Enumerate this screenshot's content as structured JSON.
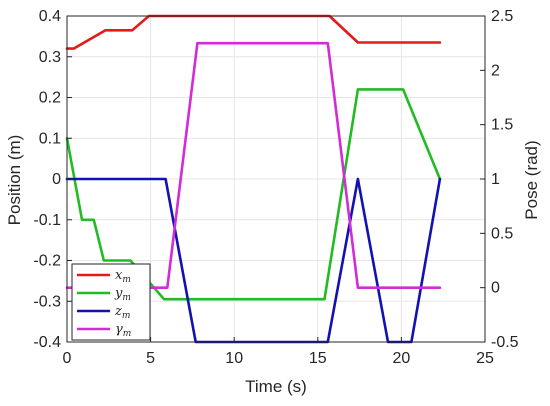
{
  "chart_data": {
    "type": "line",
    "xlabel": "Time (s)",
    "ylabel": "Position (m)",
    "y2label": "Pose (rad)",
    "xlim": [
      0,
      25
    ],
    "ylim": [
      -0.4,
      0.4
    ],
    "y2lim": [
      -0.5,
      2.5
    ],
    "grid": true,
    "legend_position": "bottom-left",
    "x_ticks": [
      "0",
      "5",
      "10",
      "15",
      "20",
      "25"
    ],
    "y_ticks": [
      "-0.4",
      "-0.3",
      "-0.2",
      "-0.1",
      "0",
      "0.1",
      "0.2",
      "0.3",
      "0.4"
    ],
    "y2_ticks": [
      "-0.5",
      "0",
      "0.5",
      "1",
      "1.5",
      "2",
      "2.5"
    ],
    "series": [
      {
        "name": "x_m",
        "label_base": "x",
        "label_sub": "m",
        "axis": "left",
        "color": "#e31a1c",
        "x": [
          0,
          0.4,
          2.3,
          3.9,
          4.9,
          15.7,
          17.4,
          22.3
        ],
        "y": [
          0.32,
          0.32,
          0.365,
          0.365,
          0.4,
          0.4,
          0.335,
          0.335
        ]
      },
      {
        "name": "y_m",
        "label_base": "y",
        "label_sub": "m",
        "axis": "left",
        "color": "#22bb22",
        "x": [
          0,
          0.9,
          1.6,
          2.2,
          3.8,
          5.8,
          15.4,
          17.4,
          20.1,
          22.3
        ],
        "y": [
          0.1,
          -0.1,
          -0.1,
          -0.2,
          -0.2,
          -0.295,
          -0.295,
          0.22,
          0.22,
          0.0
        ]
      },
      {
        "name": "z_m",
        "label_base": "z",
        "label_sub": "m",
        "axis": "right",
        "color": "#1212b0",
        "x": [
          0,
          5.9,
          7.7,
          15.6,
          17.4,
          19.2,
          20.6,
          22.3
        ],
        "y": [
          1.0,
          1.0,
          -0.5,
          -0.5,
          1.0,
          -0.5,
          -0.5,
          1.0
        ]
      },
      {
        "name": "gamma_m",
        "label_base": "γ",
        "label_sub": "m",
        "axis": "right",
        "color": "#d22bd8",
        "x": [
          0,
          6.0,
          7.8,
          15.6,
          17.4,
          22.3
        ],
        "y": [
          0.0,
          0.0,
          2.25,
          2.25,
          0.0,
          0.0
        ]
      }
    ]
  }
}
